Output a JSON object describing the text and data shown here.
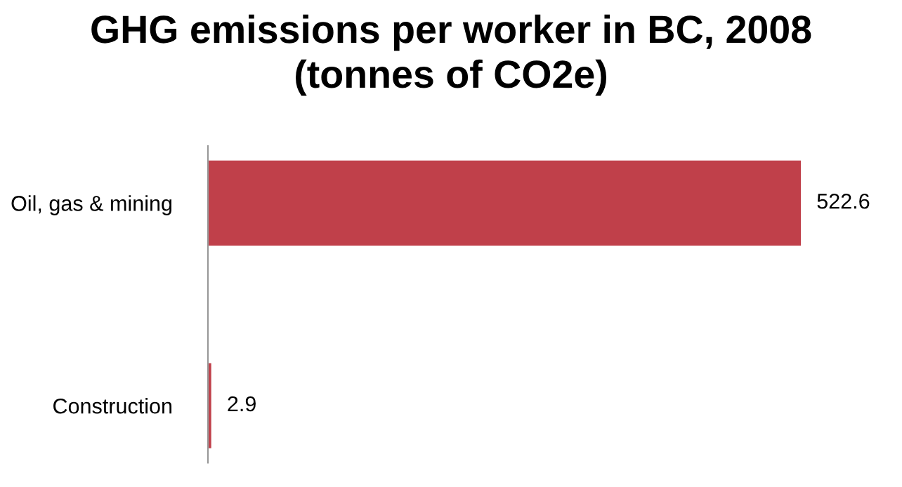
{
  "chart_data": {
    "type": "bar",
    "orientation": "horizontal",
    "title": "GHG emissions per worker in BC, 2008\n(tonnes of CO2e)",
    "categories": [
      "Oil, gas & mining",
      "Construction"
    ],
    "values": [
      522.6,
      2.9
    ],
    "color": "#c0404a",
    "data_labels": true,
    "grid": false
  }
}
